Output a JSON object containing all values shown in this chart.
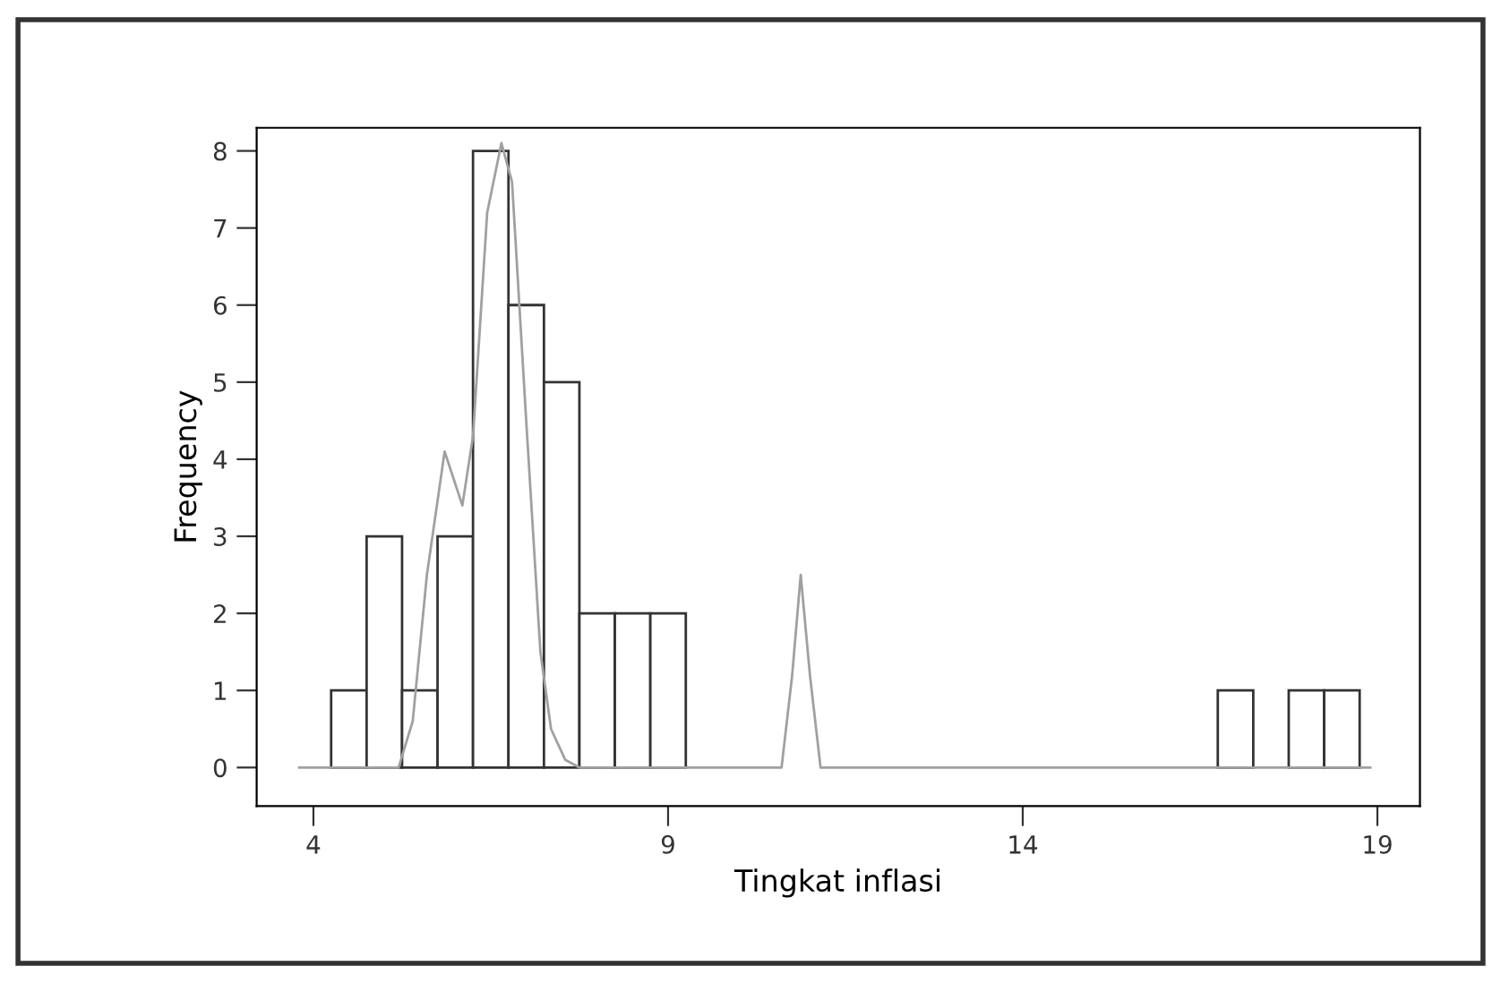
{
  "chart_data": {
    "type": "histogram",
    "xlabel": "Tingkat inflasi",
    "ylabel": "Frequency",
    "bins": [
      4.25,
      4.75,
      5.25,
      5.75,
      6.25,
      6.75,
      7.25,
      7.75,
      8.25,
      8.75,
      9.25,
      9.75,
      10.25,
      10.75,
      11.25,
      11.75,
      12.25,
      12.75,
      13.25,
      13.75,
      14.25,
      14.75,
      15.25,
      15.75,
      16.25,
      16.75,
      17.25,
      17.75,
      18.25,
      18.75
    ],
    "values": [
      1,
      3,
      1,
      3,
      8,
      6,
      5,
      2,
      2,
      2,
      0,
      0,
      0,
      0,
      0,
      0,
      0,
      0,
      0,
      0,
      0,
      0,
      0,
      0,
      0,
      1,
      0,
      1,
      1
    ],
    "color": "#ffffff",
    "series": [
      {
        "type": "line",
        "color": "#a0a0a0",
        "x": [
          3.8,
          5.2,
          5.4,
          5.6,
          5.85,
          6.1,
          6.25,
          6.45,
          6.65,
          6.8,
          7.0,
          7.2,
          7.35,
          7.55,
          7.75,
          10.6,
          10.75,
          10.87,
          11.0,
          11.15,
          18.9
        ],
        "values": [
          0,
          0,
          0.6,
          2.5,
          4.1,
          3.4,
          4.3,
          7.2,
          8.1,
          7.6,
          4.5,
          1.5,
          0.5,
          0.1,
          0,
          0,
          1.2,
          2.5,
          1.2,
          0,
          0
        ]
      }
    ],
    "xlim": [
      3.2,
      19.6
    ],
    "ylim": [
      -0.5,
      8.3
    ],
    "xticks": [
      4,
      9,
      14,
      19
    ],
    "yticks": [
      0,
      1,
      2,
      3,
      4,
      5,
      6,
      7,
      8
    ],
    "grid": false,
    "legend": false
  }
}
